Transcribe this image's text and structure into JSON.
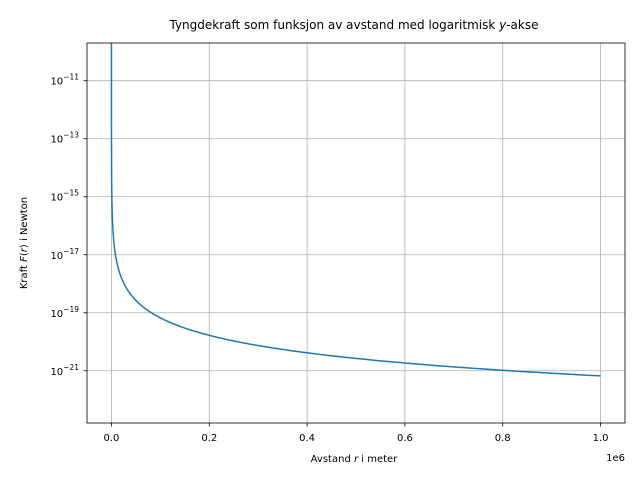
{
  "chart_data": {
    "type": "line",
    "title": {
      "prefix": "Tyngdekraft som funksjon av avstand med logaritmisk ",
      "var": "y",
      "suffix": "-akse"
    },
    "xlabel": {
      "prefix": "Avstand ",
      "var": "r",
      "suffix": " i meter"
    },
    "ylabel": {
      "prefix": "Kraft ",
      "var": "F",
      "mid": "(",
      "var2": "r",
      "suffix": ") i Newton"
    },
    "x_offset_label": "1e6",
    "xscale": "linear",
    "yscale": "log",
    "grid": true,
    "xlim": [
      -50000,
      1050000
    ],
    "ylim_exp": [
      -22.8,
      -9.7
    ],
    "x_ticks": [
      {
        "value": 0,
        "label": "0.0"
      },
      {
        "value": 200000,
        "label": "0.2"
      },
      {
        "value": 400000,
        "label": "0.4"
      },
      {
        "value": 600000,
        "label": "0.6"
      },
      {
        "value": 800000,
        "label": "0.8"
      },
      {
        "value": 1000000,
        "label": "1.0"
      }
    ],
    "y_ticks": [
      {
        "base": "10",
        "exp": "−11",
        "value": 1e-11
      },
      {
        "base": "10",
        "exp": "−13",
        "value": 1e-13
      },
      {
        "base": "10",
        "exp": "−15",
        "value": 1e-15
      },
      {
        "base": "10",
        "exp": "−17",
        "value": 1e-17
      },
      {
        "base": "10",
        "exp": "−19",
        "value": 1e-19
      },
      {
        "base": "10",
        "exp": "−21",
        "value": 1e-21
      }
    ],
    "series": [
      {
        "color": "#1f77b4",
        "model": "F(r) = k / r^2",
        "k": 6.67e-10,
        "x_range": [
          1,
          1000000
        ]
      }
    ]
  }
}
